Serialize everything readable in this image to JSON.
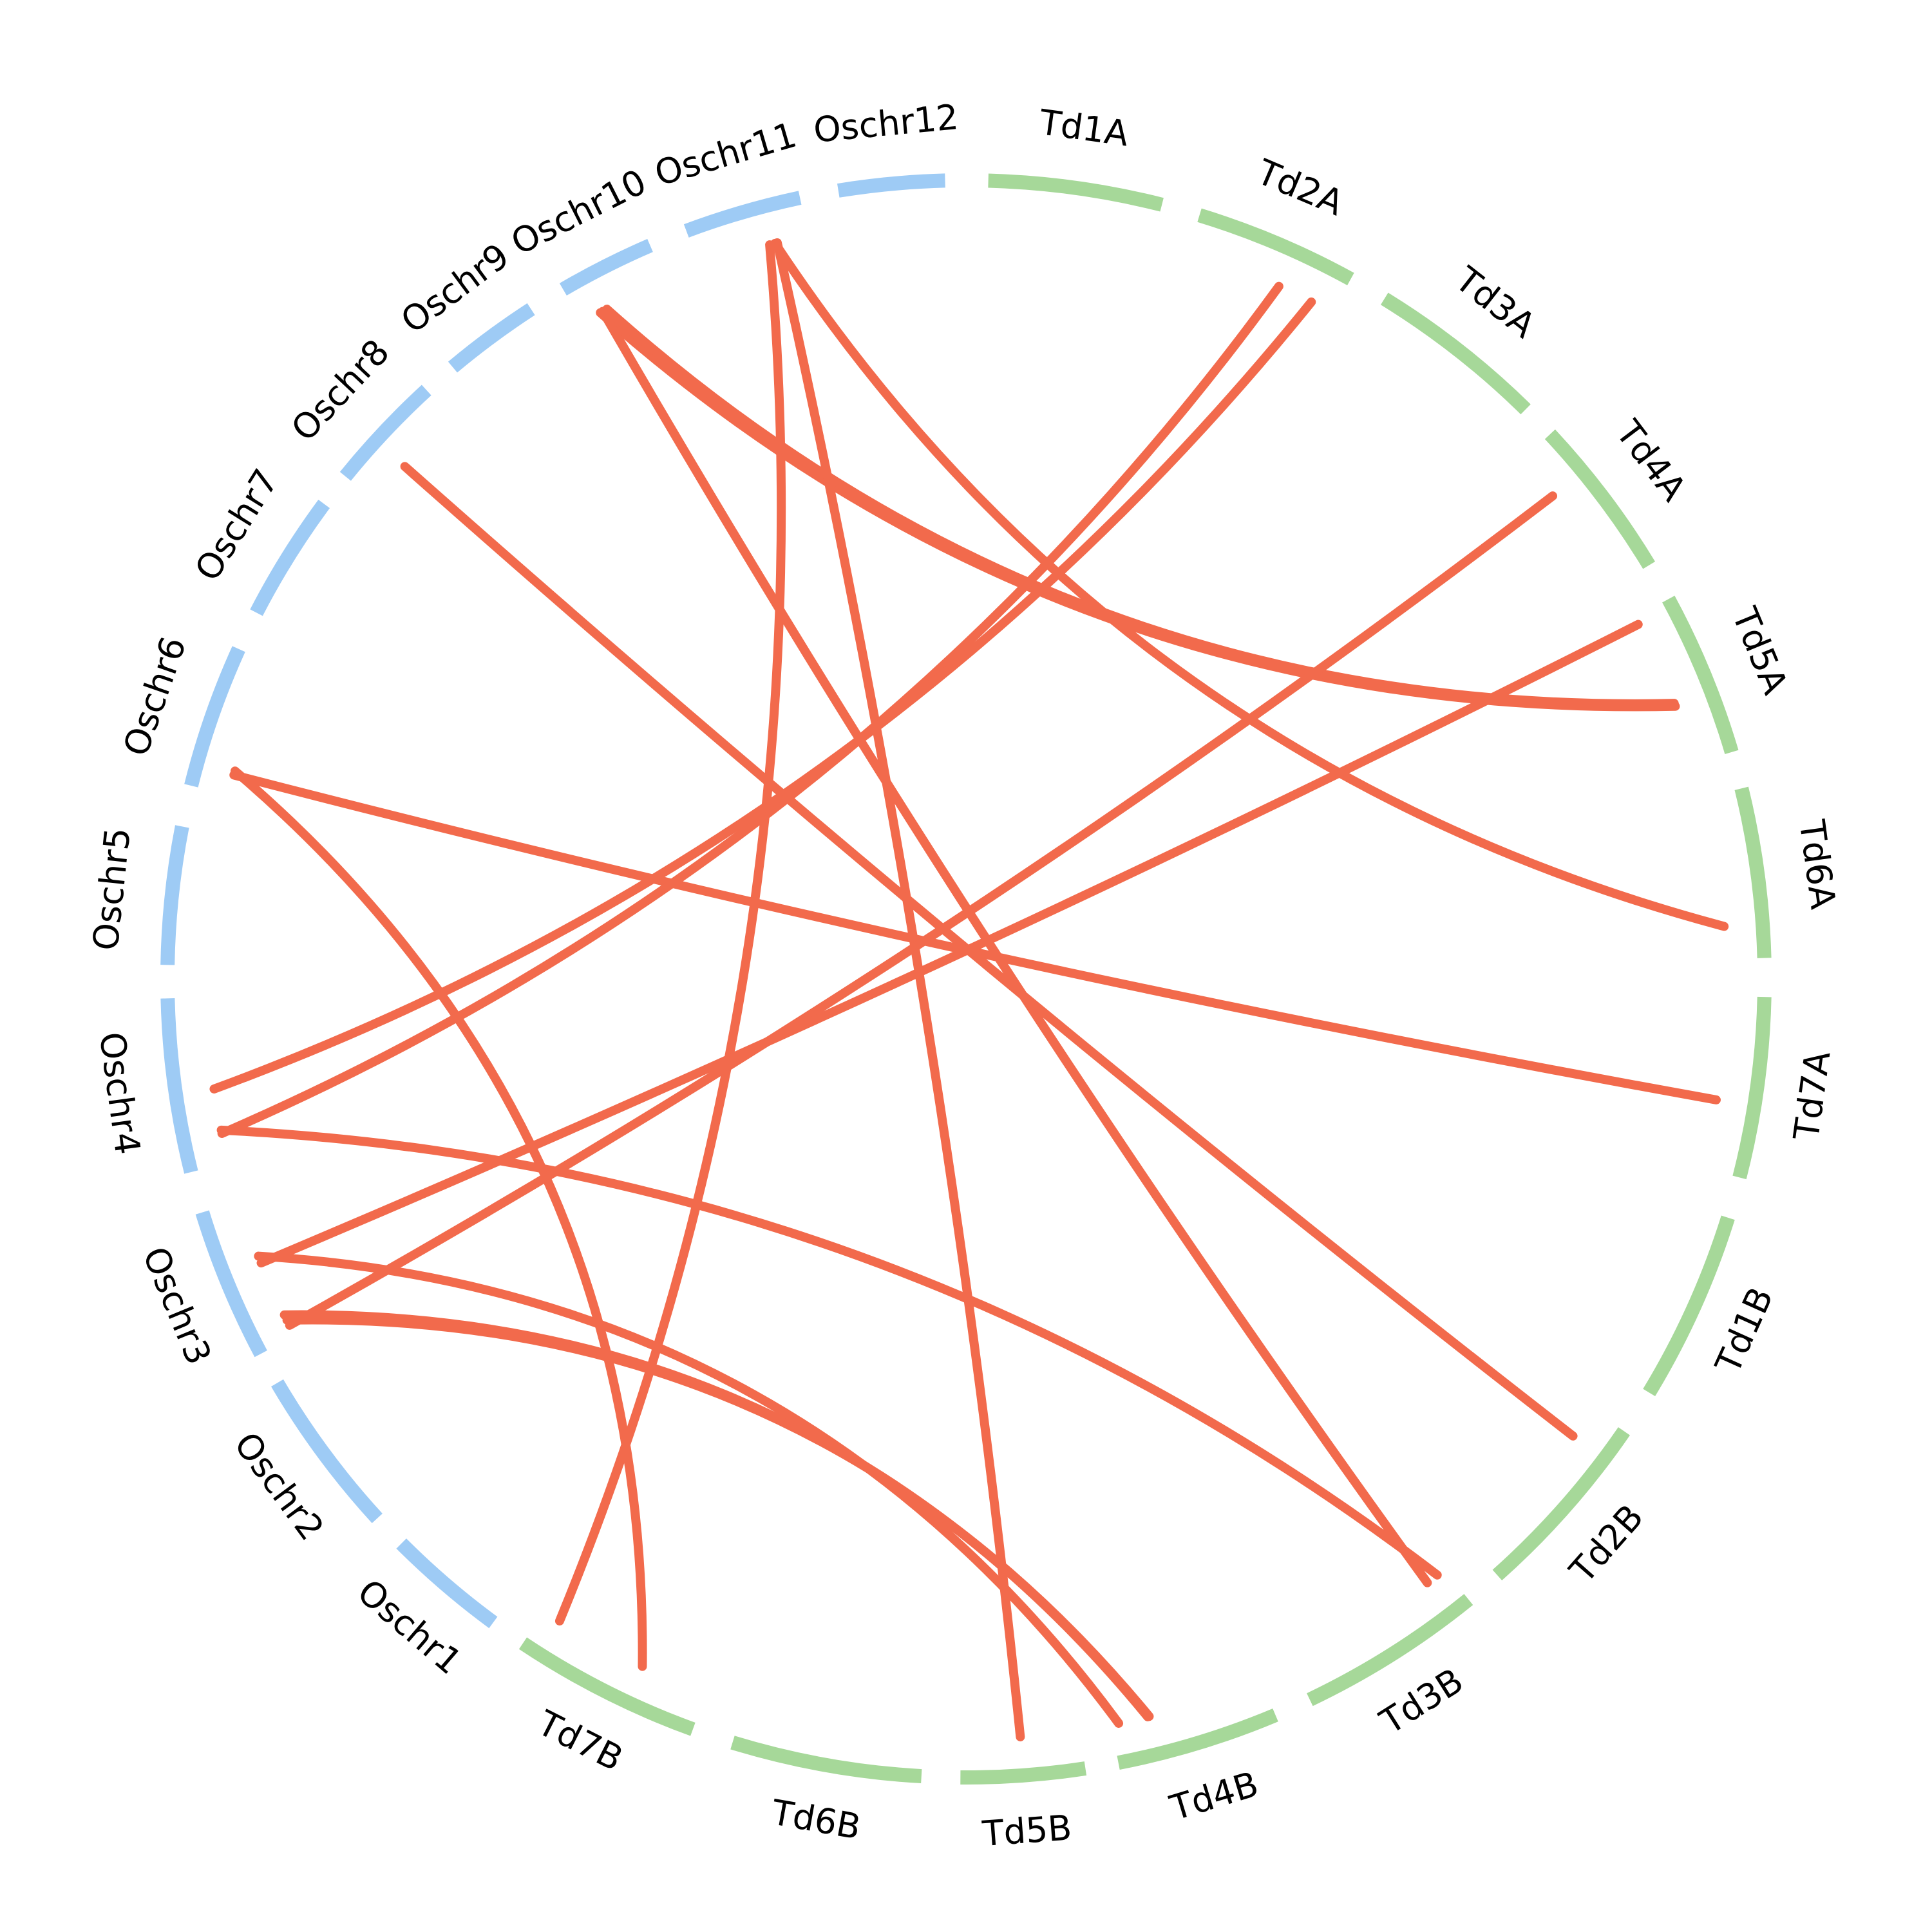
{
  "colors": {
    "rice_chromosome": "#9ecbf5",
    "wheat_chromosome": "#a6d899",
    "synteny_link": "#f26a4c"
  },
  "chromosomes": [
    {
      "id": "Oschr1",
      "label": "Oschr1",
      "group": "rice"
    },
    {
      "id": "Oschr2",
      "label": "Oschr2",
      "group": "rice"
    },
    {
      "id": "Oschr3",
      "label": "Oschr3",
      "group": "rice"
    },
    {
      "id": "Oschr4",
      "label": "Oschr4",
      "group": "rice"
    },
    {
      "id": "Oschr5",
      "label": "Oschr5",
      "group": "rice"
    },
    {
      "id": "Oschr6",
      "label": "Oschr6",
      "group": "rice"
    },
    {
      "id": "Oschr7",
      "label": "Oschr7",
      "group": "rice"
    },
    {
      "id": "Oschr8",
      "label": "Oschr8",
      "group": "rice"
    },
    {
      "id": "Oschr9",
      "label": "Oschr9",
      "group": "rice"
    },
    {
      "id": "Oschr10",
      "label": "Oschr10",
      "group": "rice"
    },
    {
      "id": "Oschr11",
      "label": "Oschr11",
      "group": "rice"
    },
    {
      "id": "Oschr12",
      "label": "Oschr12",
      "group": "rice"
    },
    {
      "id": "Td1A",
      "label": "Td1A",
      "group": "wheat"
    },
    {
      "id": "Td2A",
      "label": "Td2A",
      "group": "wheat"
    },
    {
      "id": "Td3A",
      "label": "Td3A",
      "group": "wheat"
    },
    {
      "id": "Td4A",
      "label": "Td4A",
      "group": "wheat"
    },
    {
      "id": "Td5A",
      "label": "Td5A",
      "group": "wheat"
    },
    {
      "id": "Td6A",
      "label": "Td6A",
      "group": "wheat"
    },
    {
      "id": "Td7A",
      "label": "Td7A",
      "group": "wheat"
    },
    {
      "id": "Td1B",
      "label": "Td1B",
      "group": "wheat"
    },
    {
      "id": "Td2B",
      "label": "Td2B",
      "group": "wheat"
    },
    {
      "id": "Td3B",
      "label": "Td3B",
      "group": "wheat"
    },
    {
      "id": "Td4B",
      "label": "Td4B",
      "group": "wheat"
    },
    {
      "id": "Td5B",
      "label": "Td5B",
      "group": "wheat"
    },
    {
      "id": "Td6B",
      "label": "Td6B",
      "group": "wheat"
    },
    {
      "id": "Td7B",
      "label": "Td7B",
      "group": "wheat"
    }
  ],
  "links": [
    {
      "from": "Oschr10",
      "from_pos": 0.22,
      "to": "Td5A",
      "to_pos": 0.62
    },
    {
      "from": "Oschr10",
      "from_pos": 0.3,
      "to": "Td5A",
      "to_pos": 0.6
    },
    {
      "from": "Oschr10",
      "from_pos": 0.25,
      "to": "Td3B",
      "to_pos": 0.12
    },
    {
      "from": "Oschr11",
      "from_pos": 0.7,
      "to": "Td6A",
      "to_pos": 0.8
    },
    {
      "from": "Oschr11",
      "from_pos": 0.72,
      "to": "Td5B",
      "to_pos": 0.5
    },
    {
      "from": "Oschr11",
      "from_pos": 0.65,
      "to": "Td7B",
      "to_pos": 0.9
    },
    {
      "from": "Oschr8",
      "from_pos": 0.4,
      "to": "Td2B",
      "to_pos": 0.18
    },
    {
      "from": "Oschr6",
      "from_pos": 0.15,
      "to": "Td7A",
      "to_pos": 0.6
    },
    {
      "from": "Oschr6",
      "from_pos": 0.18,
      "to": "Td7B",
      "to_pos": 0.38
    },
    {
      "from": "Oschr4",
      "from_pos": 0.18,
      "to": "Td2A",
      "to_pos": 0.62
    },
    {
      "from": "Oschr4",
      "from_pos": 0.45,
      "to": "Td2A",
      "to_pos": 0.85
    },
    {
      "from": "Oschr4",
      "from_pos": 0.2,
      "to": "Td3B",
      "to_pos": 0.05
    },
    {
      "from": "Oschr3",
      "from_pos": 0.08,
      "to": "Td4A",
      "to_pos": 0.3
    },
    {
      "from": "Oschr3",
      "from_pos": 0.12,
      "to": "Td4B",
      "to_pos": 0.75
    },
    {
      "from": "Oschr3",
      "from_pos": 0.16,
      "to": "Td4B",
      "to_pos": 0.76
    },
    {
      "from": "Oschr3",
      "from_pos": 0.55,
      "to": "Td5A",
      "to_pos": 0.05
    },
    {
      "from": "Oschr3",
      "from_pos": 0.6,
      "to": "Td4B",
      "to_pos": 0.95
    }
  ]
}
